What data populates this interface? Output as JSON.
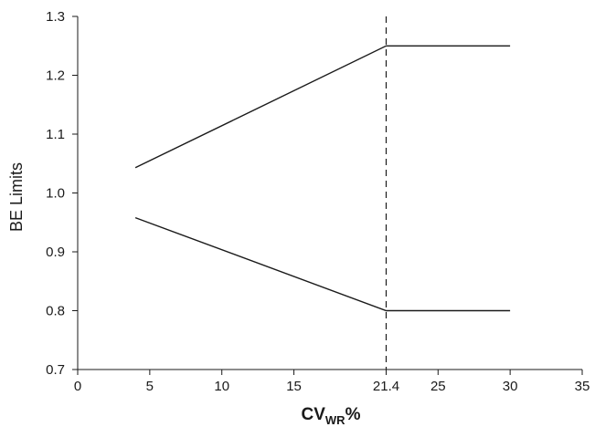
{
  "chart_data": {
    "type": "line",
    "title": "",
    "xlabel": "CV",
    "xlabel_subscript": "WR",
    "xlabel_suffix": "%",
    "ylabel": "BE Limits",
    "xlim": [
      0,
      35
    ],
    "ylim": [
      0.7,
      1.3
    ],
    "x_ticks": [
      0,
      5,
      10,
      15,
      21.4,
      25,
      30,
      35
    ],
    "x_tick_labels": [
      "0",
      "5",
      "10",
      "15",
      "21.4",
      "25",
      "30",
      "35"
    ],
    "y_ticks": [
      0.7,
      0.8,
      0.9,
      1.0,
      1.1,
      1.2,
      1.3
    ],
    "y_tick_labels": [
      "0.7",
      "0.8",
      "0.9",
      "1.0",
      "1.1",
      "1.2",
      "1.3"
    ],
    "grid": false,
    "legend": "none",
    "series": [
      {
        "points": [
          [
            4,
            1.043
          ],
          [
            21.4,
            1.25
          ],
          [
            30,
            1.25
          ]
        ]
      },
      {
        "points": [
          [
            4,
            0.958
          ],
          [
            21.4,
            0.8
          ],
          [
            30,
            0.8
          ]
        ]
      }
    ],
    "reference_line": {
      "x": 21.4,
      "style": "dashed"
    },
    "colors": {
      "line": "#1a1a1a",
      "axis": "#1a1a1a"
    }
  }
}
